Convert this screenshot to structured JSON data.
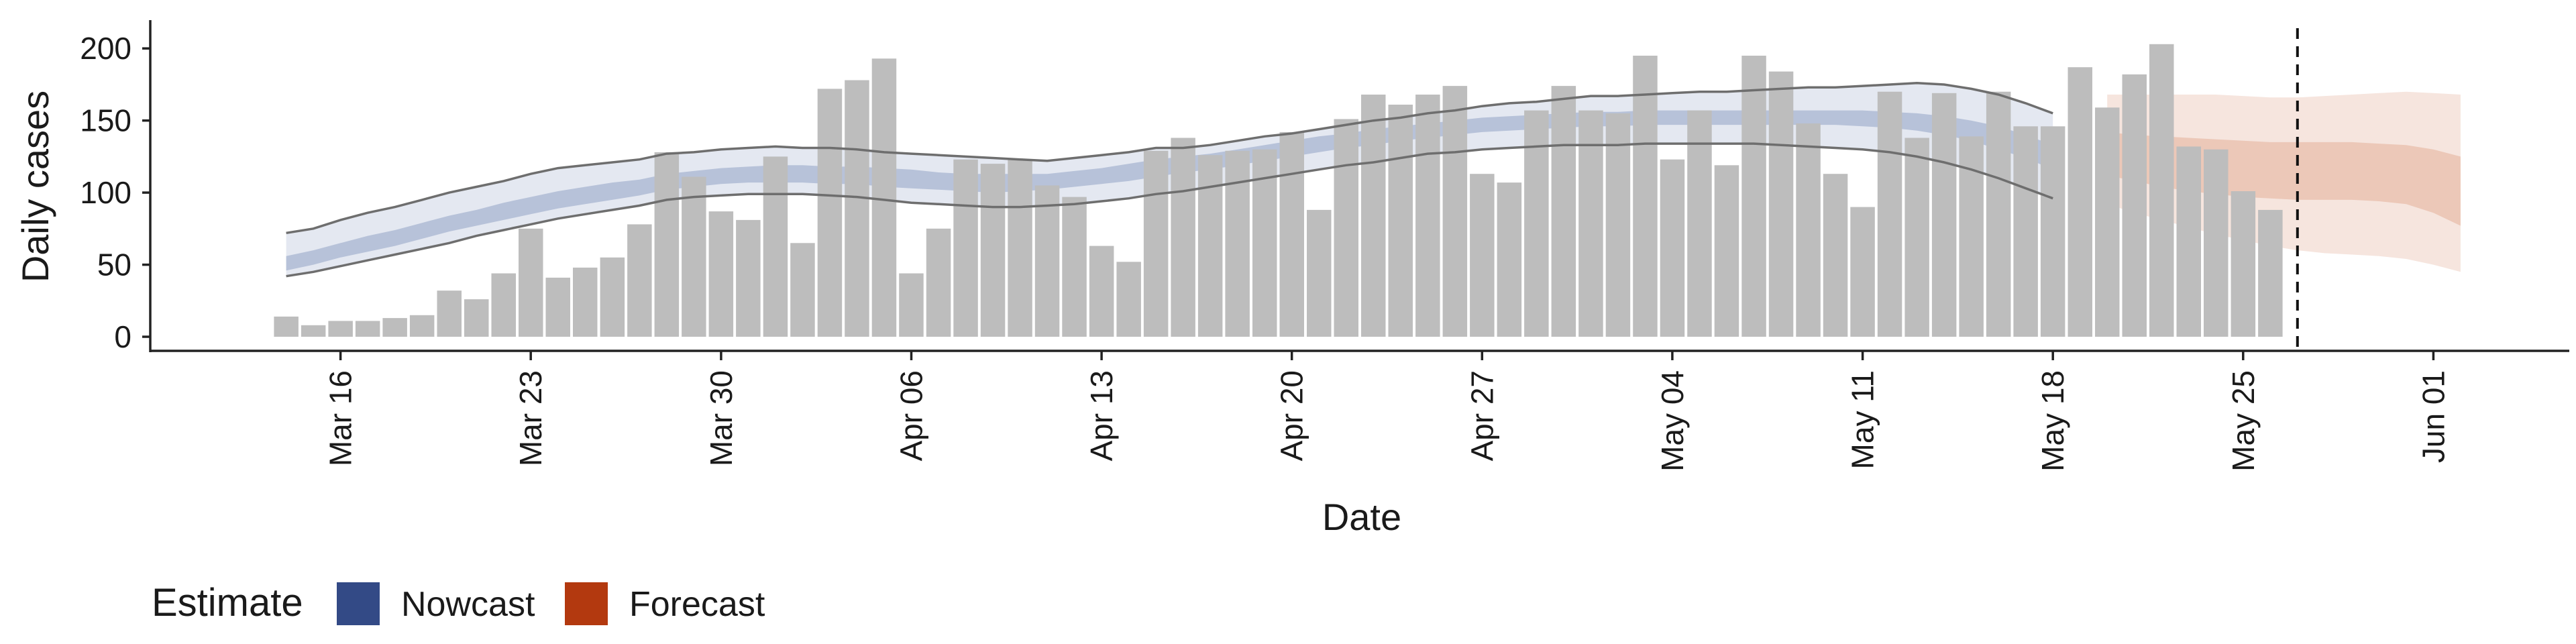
{
  "chart_data": {
    "type": "bar",
    "xlabel": "Date",
    "ylabel": "Daily cases",
    "ylim": [
      0,
      215
    ],
    "yticks": [
      0,
      50,
      100,
      150,
      200
    ],
    "xlim": [
      "2020-03-09",
      "2020-06-06"
    ],
    "xticks": [
      {
        "date": "2020-03-16",
        "label": "Mar 16"
      },
      {
        "date": "2020-03-23",
        "label": "Mar 23"
      },
      {
        "date": "2020-03-30",
        "label": "Mar 30"
      },
      {
        "date": "2020-04-06",
        "label": "Apr 06"
      },
      {
        "date": "2020-04-13",
        "label": "Apr 13"
      },
      {
        "date": "2020-04-20",
        "label": "Apr 20"
      },
      {
        "date": "2020-04-27",
        "label": "Apr 27"
      },
      {
        "date": "2020-05-04",
        "label": "May 04"
      },
      {
        "date": "2020-05-11",
        "label": "May 11"
      },
      {
        "date": "2020-05-18",
        "label": "May 18"
      },
      {
        "date": "2020-05-25",
        "label": "May 25"
      },
      {
        "date": "2020-06-01",
        "label": "Jun 01"
      }
    ],
    "grid": false,
    "legend": {
      "title": "Estimate",
      "placement": "bottom-left",
      "entries": [
        {
          "label": "Nowcast",
          "color": "#334a86"
        },
        {
          "label": "Forecast",
          "color": "#b3390f"
        }
      ]
    },
    "colors": {
      "bars": "#bdbdbd",
      "nowcast_outer": "#e4e8f1",
      "nowcast_inner": "#b7c2d9",
      "forecast_outer": "#f6e5de",
      "forecast_inner": "#ecc8b8",
      "bound_line": "#6e6e6e"
    },
    "vline_date": "2020-05-27",
    "observed": {
      "start_date": "2020-03-14",
      "values": [
        14,
        8,
        11,
        11,
        13,
        15,
        32,
        26,
        44,
        75,
        41,
        48,
        55,
        78,
        128,
        111,
        87,
        81,
        125,
        65,
        172,
        178,
        193,
        44,
        75,
        123,
        120,
        123,
        105,
        97,
        63,
        52,
        129,
        138,
        126,
        129,
        130,
        142,
        88,
        151,
        168,
        161,
        168,
        174,
        113,
        107,
        157,
        174,
        157,
        155,
        195,
        123,
        157,
        119,
        195,
        184,
        148,
        113,
        90,
        170,
        138,
        169,
        139,
        170,
        146,
        146,
        187,
        159,
        182,
        203,
        132,
        130,
        101,
        88
      ]
    },
    "nowcast": {
      "start_date": "2020-03-14",
      "dates_count": 66,
      "outer_upper": [
        72,
        75,
        81,
        86,
        90,
        95,
        100,
        104,
        108,
        113,
        117,
        119,
        121,
        123,
        127,
        128,
        130,
        131,
        132,
        131,
        131,
        130,
        128,
        127,
        126,
        125,
        124,
        123,
        122,
        124,
        126,
        128,
        131,
        131,
        133,
        136,
        139,
        141,
        144,
        147,
        150,
        152,
        155,
        157,
        160,
        162,
        163,
        165,
        167,
        167,
        168,
        169,
        170,
        170,
        171,
        172,
        173,
        173,
        174,
        175,
        176,
        175,
        172,
        168,
        162,
        155
      ],
      "inner_upper": [
        56,
        60,
        65,
        70,
        74,
        79,
        84,
        88,
        93,
        97,
        101,
        104,
        107,
        109,
        113,
        115,
        117,
        118,
        119,
        119,
        118,
        118,
        117,
        116,
        114,
        113,
        113,
        113,
        113,
        115,
        117,
        120,
        123,
        125,
        127,
        130,
        133,
        136,
        139,
        141,
        144,
        146,
        148,
        150,
        152,
        153,
        154,
        155,
        156,
        156,
        157,
        157,
        157,
        157,
        157,
        157,
        157,
        157,
        157,
        156,
        155,
        153,
        150,
        146,
        140,
        133
      ],
      "inner_lower": [
        46,
        50,
        55,
        59,
        63,
        68,
        73,
        77,
        81,
        85,
        89,
        92,
        95,
        98,
        102,
        104,
        106,
        107,
        107,
        107,
        106,
        106,
        104,
        103,
        102,
        101,
        100,
        101,
        102,
        104,
        106,
        108,
        111,
        114,
        116,
        119,
        122,
        125,
        128,
        131,
        133,
        136,
        138,
        140,
        142,
        143,
        144,
        145,
        146,
        146,
        147,
        147,
        147,
        147,
        147,
        147,
        147,
        147,
        146,
        145,
        143,
        140,
        136,
        130,
        124,
        116
      ],
      "outer_lower": [
        42,
        45,
        49,
        53,
        57,
        61,
        65,
        70,
        74,
        78,
        82,
        85,
        88,
        91,
        95,
        97,
        98,
        99,
        99,
        99,
        98,
        97,
        95,
        93,
        92,
        91,
        90,
        90,
        91,
        92,
        94,
        96,
        99,
        101,
        104,
        107,
        110,
        113,
        116,
        119,
        121,
        124,
        127,
        128,
        130,
        131,
        132,
        133,
        133,
        133,
        134,
        134,
        134,
        134,
        134,
        133,
        132,
        131,
        130,
        128,
        125,
        121,
        116,
        110,
        103,
        96
      ]
    },
    "forecast": {
      "start_date": "2020-05-20",
      "dates_count": 14,
      "outer_upper": [
        168,
        168,
        168,
        168,
        168,
        167,
        166,
        166,
        167,
        168,
        169,
        170,
        169,
        168
      ],
      "inner_upper": [
        142,
        140,
        139,
        138,
        137,
        136,
        135,
        135,
        135,
        135,
        134,
        133,
        130,
        125
      ],
      "inner_lower": [
        112,
        108,
        104,
        101,
        99,
        97,
        96,
        95,
        95,
        95,
        94,
        92,
        86,
        77
      ],
      "outer_lower": [
        92,
        86,
        81,
        76,
        71,
        67,
        63,
        60,
        58,
        57,
        56,
        54,
        50,
        45
      ]
    }
  }
}
